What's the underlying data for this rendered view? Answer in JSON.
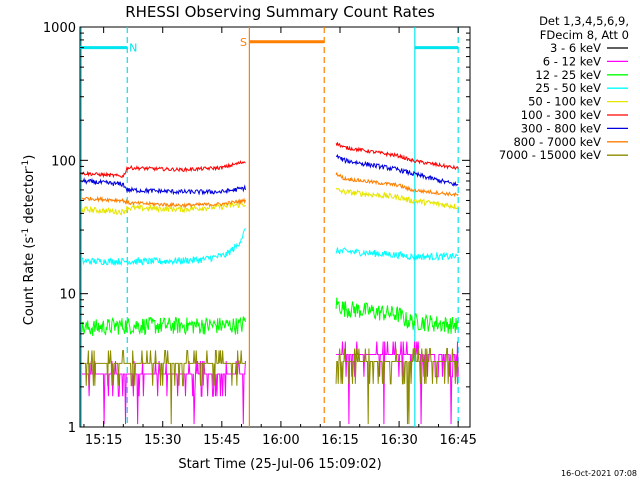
{
  "chart_data": {
    "type": "line",
    "title": "RHESSI Observing Summary Count Rates",
    "xlabel": "Start Time (25-Jul-06 15:09:02)",
    "ylabel_main": "Count Rate (s",
    "ylabel_sup1": "-1",
    "ylabel_mid": " detector",
    "ylabel_sup2": "-1",
    "ylabel_end": ")",
    "yscale": "log",
    "ylim": [
      1,
      1000
    ],
    "xlim_min": [
      909,
      1008
    ],
    "x_ticks": [
      {
        "t": 915,
        "label": "15:15"
      },
      {
        "t": 930,
        "label": "15:30"
      },
      {
        "t": 945,
        "label": "15:45"
      },
      {
        "t": 960,
        "label": "16:00"
      },
      {
        "t": 975,
        "label": "16:15"
      },
      {
        "t": 990,
        "label": "16:30"
      },
      {
        "t": 1005,
        "label": "16:45"
      }
    ],
    "y_ticks": [
      {
        "v": 1,
        "label": "1"
      },
      {
        "v": 10,
        "label": "10"
      },
      {
        "v": 100,
        "label": "100"
      },
      {
        "v": 1000,
        "label": "1000"
      }
    ],
    "legend_header": [
      "Det 1,3,4,5,6,9,",
      "FDecim 8, Att 0"
    ],
    "legend_position": "right",
    "timestamp": "16-Oct-2021 07:08",
    "flags": [
      {
        "label": "N",
        "color": "#00e5ee",
        "t_start": 909,
        "t_end": 921,
        "level": 700,
        "label_t": 922.5
      },
      {
        "label": "S",
        "color": "#ff7f00",
        "t_start": 952,
        "t_end": 971,
        "level": 775,
        "label_t": 950.5
      },
      {
        "label": "",
        "color": "#00e5ee",
        "t_start": 994,
        "t_end": 1005,
        "level": 700,
        "label_t": 0
      }
    ],
    "vlines": [
      {
        "t": 909.3,
        "color": "#00e5ee",
        "style": "solid"
      },
      {
        "t": 921,
        "color": "#00e5ee",
        "style": "dashed"
      },
      {
        "t": 952,
        "color": "#ff7f00",
        "style": "solid"
      },
      {
        "t": 971,
        "color": "#ff7f00",
        "style": "dashed"
      },
      {
        "t": 994,
        "color": "#00e5ee",
        "style": "solid"
      },
      {
        "t": 1005,
        "color": "#00e5ee",
        "style": "dashed"
      }
    ],
    "series": [
      {
        "name": "3 - 6 keV",
        "color": "#000000",
        "segments": []
      },
      {
        "name": "6 - 12 keV",
        "color": "#ff00ff",
        "noise": 0.35,
        "segments": [
          {
            "t": [
              909.5,
              923,
              951
            ],
            "v": [
              2.5,
              2.5,
              2.5
            ]
          },
          {
            "t": [
              974,
              1005
            ],
            "v": [
              3.5,
              3.5
            ]
          }
        ]
      },
      {
        "name": "12 - 25 keV",
        "color": "#00ff00",
        "noise": 0.15,
        "segments": [
          {
            "t": [
              909.5,
              920,
              950,
              951
            ],
            "v": [
              5.5,
              5.8,
              5.8,
              6.3
            ]
          },
          {
            "t": [
              974,
              976,
              990,
              992,
              1005
            ],
            "v": [
              8.5,
              7.8,
              7.0,
              6.3,
              5.8
            ]
          }
        ]
      },
      {
        "name": "25 - 50 keV",
        "color": "#00ffff",
        "noise": 0.06,
        "segments": [
          {
            "t": [
              909.5,
              930,
              940,
              946,
              949,
              951
            ],
            "v": [
              17.5,
              17.5,
              18,
              19.5,
              23,
              30
            ]
          },
          {
            "t": [
              974,
              990,
              993,
              1005
            ],
            "v": [
              21,
              19.5,
              19,
              19
            ]
          }
        ]
      },
      {
        "name": "50 - 100 keV",
        "color": "#e6e600",
        "noise": 0.05,
        "segments": [
          {
            "t": [
              909.5,
              920,
              921,
              935,
              945,
              951
            ],
            "v": [
              43,
              41,
              44,
              43,
              45,
              47
            ]
          },
          {
            "t": [
              974,
              976,
              990,
              993,
              1005
            ],
            "v": [
              60,
              58,
              53,
              50,
              45
            ]
          }
        ]
      },
      {
        "name": "100 - 300 keV",
        "color": "#ff0000",
        "noise": 0.03,
        "segments": [
          {
            "t": [
              909.5,
              920,
              921,
              935,
              945,
              951
            ],
            "v": [
              80,
              76,
              88,
              85,
              88,
              98
            ]
          },
          {
            "t": [
              974,
              976,
              990,
              993,
              1005
            ],
            "v": [
              135,
              125,
              108,
              100,
              87
            ]
          }
        ]
      },
      {
        "name": "300 - 800 keV",
        "color": "#0000dd",
        "noise": 0.04,
        "segments": [
          {
            "t": [
              909.5,
              920,
              921,
              935,
              945,
              951
            ],
            "v": [
              70,
              66,
              60,
              58,
              58,
              62
            ]
          },
          {
            "t": [
              974,
              976,
              990,
              993,
              1005
            ],
            "v": [
              108,
              100,
              85,
              80,
              65
            ]
          }
        ]
      },
      {
        "name": "800 - 7000 keV",
        "color": "#ff7f00",
        "noise": 0.03,
        "segments": [
          {
            "t": [
              909.5,
              920,
              921,
              935,
              945,
              951
            ],
            "v": [
              52,
              50,
              48,
              46,
              47,
              50
            ]
          },
          {
            "t": [
              974,
              976,
              990,
              993,
              1005
            ],
            "v": [
              80,
              73,
              65,
              60,
              55
            ]
          }
        ]
      },
      {
        "name": "7000 - 15000 keV",
        "color": "#8b8b00",
        "noise": 0.3,
        "segments": [
          {
            "t": [
              909.5,
              951
            ],
            "v": [
              3.0,
              3.0
            ]
          },
          {
            "t": [
              974,
              1005
            ],
            "v": [
              3.1,
              3.1
            ]
          }
        ]
      }
    ]
  }
}
